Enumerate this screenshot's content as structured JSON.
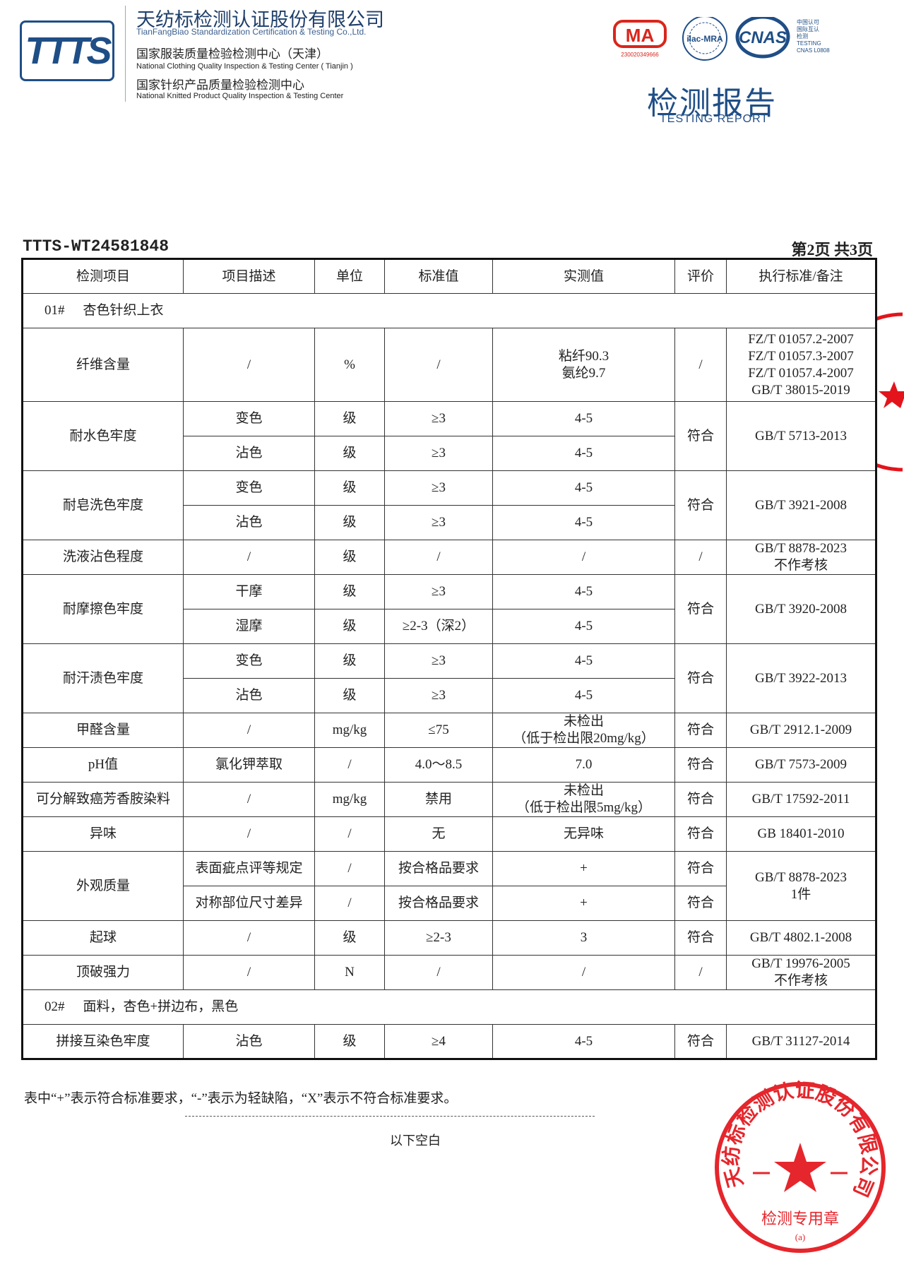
{
  "header": {
    "logo_text": "TTTS",
    "company_cn": "天纺标检测认证股份有限公司",
    "company_en": "TianFangBiao Standardization Certification & Testing Co.,Ltd.",
    "center1_cn": "国家服装质量检验检测中心（天津）",
    "center1_en": "National Clothing Quality Inspection & Testing Center ( Tianjin )",
    "center2_cn": "国家针织产品质量检验检测中心",
    "center2_en": "National Knitted Product Quality Inspection & Testing Center",
    "cert_logos": {
      "cma": "MA",
      "cma_no": "230020349666",
      "ilac": "ilac-MRA",
      "cnas": "CNAS",
      "cnas_note": [
        "中国认可",
        "国际互认",
        "检测",
        "TESTING",
        "CNAS L0808"
      ]
    },
    "title_cn": "检测报告",
    "title_en": "TESTING REPORT",
    "brand_color": "#1f4e86"
  },
  "report_no": "TTTS-WT24581848",
  "page_info": "第2页  共3页",
  "table": {
    "columns": [
      "检测项目",
      "项目描述",
      "单位",
      "标准值",
      "实测值",
      "评价",
      "执行标准/备注"
    ],
    "rows": [
      {
        "section": "01#",
        "label": "杏色针织上衣"
      },
      {
        "item": "纤维含量",
        "subs": [
          {
            "desc": "/",
            "unit": "%",
            "std": "/",
            "measured": "粘纤90.3\n氨纶9.7"
          }
        ],
        "result": "/",
        "standard": "FZ/T 01057.2-2007\nFZ/T 01057.3-2007\nFZ/T 01057.4-2007\nGB/T 38015-2019"
      },
      {
        "item": "耐水色牢度",
        "subs": [
          {
            "desc": "变色",
            "unit": "级",
            "std": "≥3",
            "measured": "4-5"
          },
          {
            "desc": "沾色",
            "unit": "级",
            "std": "≥3",
            "measured": "4-5"
          }
        ],
        "result": "符合",
        "standard": "GB/T 5713-2013"
      },
      {
        "item": "耐皂洗色牢度",
        "subs": [
          {
            "desc": "变色",
            "unit": "级",
            "std": "≥3",
            "measured": "4-5"
          },
          {
            "desc": "沾色",
            "unit": "级",
            "std": "≥3",
            "measured": "4-5"
          }
        ],
        "result": "符合",
        "standard": "GB/T 3921-2008"
      },
      {
        "item": "洗液沾色程度",
        "subs": [
          {
            "desc": "/",
            "unit": "级",
            "std": "/",
            "measured": "/"
          }
        ],
        "result": "/",
        "standard": "GB/T 8878-2023\n不作考核"
      },
      {
        "item": "耐摩擦色牢度",
        "subs": [
          {
            "desc": "干摩",
            "unit": "级",
            "std": "≥3",
            "measured": "4-5"
          },
          {
            "desc": "湿摩",
            "unit": "级",
            "std": "≥2-3（深2）",
            "measured": "4-5"
          }
        ],
        "result": "符合",
        "standard": "GB/T 3920-2008"
      },
      {
        "item": "耐汗渍色牢度",
        "subs": [
          {
            "desc": "变色",
            "unit": "级",
            "std": "≥3",
            "measured": "4-5"
          },
          {
            "desc": "沾色",
            "unit": "级",
            "std": "≥3",
            "measured": "4-5"
          }
        ],
        "result": "符合",
        "standard": "GB/T 3922-2013"
      },
      {
        "item": "甲醛含量",
        "subs": [
          {
            "desc": "/",
            "unit": "mg/kg",
            "std": "≤75",
            "measured": "未检出\n（低于检出限20mg/kg）"
          }
        ],
        "result": "符合",
        "standard": "GB/T 2912.1-2009"
      },
      {
        "item": "pH值",
        "subs": [
          {
            "desc": "氯化钾萃取",
            "unit": "/",
            "std": "4.0～8.5",
            "measured": "7.0"
          }
        ],
        "result": "符合",
        "standard": "GB/T 7573-2009"
      },
      {
        "item": "可分解致癌芳香胺染料",
        "subs": [
          {
            "desc": "/",
            "unit": "mg/kg",
            "std": "禁用",
            "measured": "未检出\n（低于检出限5mg/kg）"
          }
        ],
        "result": "符合",
        "standard": "GB/T 17592-2011"
      },
      {
        "item": "异味",
        "subs": [
          {
            "desc": "/",
            "unit": "/",
            "std": "无",
            "measured": "无异味"
          }
        ],
        "result": "符合",
        "standard": "GB 18401-2010"
      },
      {
        "item": "外观质量",
        "subs": [
          {
            "desc": "表面疵点评等规定",
            "unit": "/",
            "std": "按合格品要求",
            "measured": "+",
            "result": "符合"
          },
          {
            "desc": "对称部位尺寸差异",
            "unit": "/",
            "std": "按合格品要求",
            "measured": "+",
            "result": "符合"
          }
        ],
        "standard": "GB/T 8878-2023\n1件"
      },
      {
        "item": "起球",
        "subs": [
          {
            "desc": "/",
            "unit": "级",
            "std": "≥2-3",
            "measured": "3"
          }
        ],
        "result": "符合",
        "standard": "GB/T 4802.1-2008"
      },
      {
        "item": "顶破强力",
        "subs": [
          {
            "desc": "/",
            "unit": "N",
            "std": "/",
            "measured": "/"
          }
        ],
        "result": "/",
        "standard": "GB/T 19976-2005\n不作考核"
      },
      {
        "section": "02#",
        "label": "面料，杏色+拼边布，黑色"
      },
      {
        "item": "拼接互染色牢度",
        "subs": [
          {
            "desc": "沾色",
            "unit": "级",
            "std": "≥4",
            "measured": "4-5"
          }
        ],
        "result": "符合",
        "standard": "GB/T 31127-2014"
      }
    ]
  },
  "footnote": "表中“+”表示符合标准要求，“-”表示为轻缺陷，“X”表示不符合标准要求。",
  "end_mark": "以下空白",
  "stamp": {
    "text": "天纺标检测认证股份有限公司",
    "bottom": "检测专用章",
    "mark": "(a)",
    "color": "#e3141b"
  }
}
